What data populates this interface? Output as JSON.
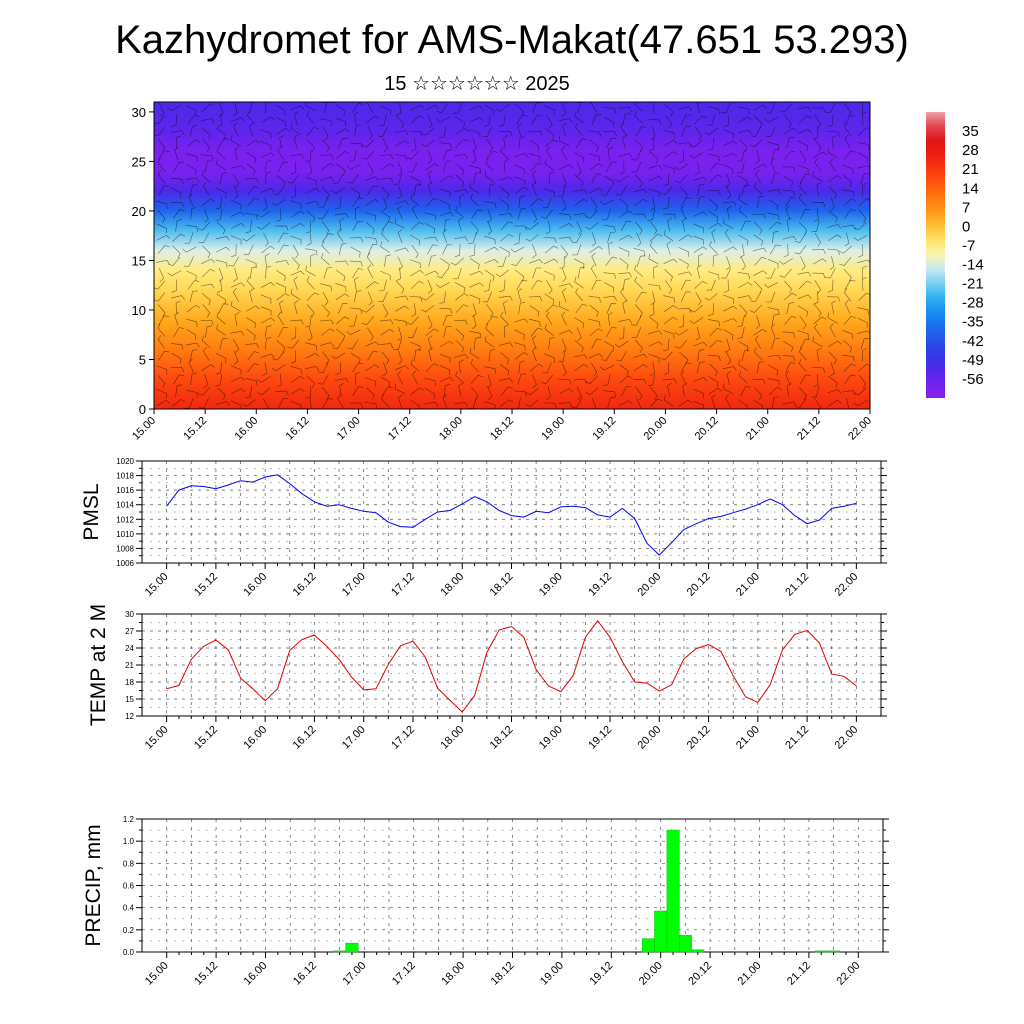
{
  "header": {
    "title": "Kazhydromet for AMS-Makat(47.651 53.293)",
    "subtitle": "15 ☆☆☆☆☆☆ 2025"
  },
  "x_labels": [
    "15.00",
    "15.12",
    "16.00",
    "16.12",
    "17.00",
    "17.12",
    "18.00",
    "18.12",
    "19.00",
    "19.12",
    "20.00",
    "20.12",
    "21.00",
    "21.12",
    "22.00"
  ],
  "colors": {
    "pmsl_line": "#0000ff",
    "temp_line": "#e00000",
    "precip_bar": "#00ff00",
    "wind_barbs": "#000000"
  },
  "chart_data": [
    {
      "id": "upper_air",
      "type": "heatmap",
      "y_ticks": [
        0,
        5,
        10,
        15,
        20,
        25,
        30
      ],
      "ylim": [
        0,
        31
      ],
      "colorbar": {
        "labels": [
          "35",
          "28",
          "21",
          "14",
          "7",
          "0",
          "-7",
          "-14",
          "-21",
          "-28",
          "-35",
          "-42",
          "-49",
          "-56"
        ],
        "range": [
          -63,
          42
        ]
      },
      "temperature_profile": [
        {
          "level": 0,
          "value": 24
        },
        {
          "level": 3,
          "value": 18
        },
        {
          "level": 6,
          "value": 10
        },
        {
          "level": 9,
          "value": 3
        },
        {
          "level": 12,
          "value": -3
        },
        {
          "level": 14,
          "value": -7
        },
        {
          "level": 16,
          "value": -14
        },
        {
          "level": 18,
          "value": -24
        },
        {
          "level": 20,
          "value": -38
        },
        {
          "level": 22,
          "value": -52
        },
        {
          "level": 24,
          "value": -60
        },
        {
          "level": 26,
          "value": -60
        },
        {
          "level": 28,
          "value": -55
        },
        {
          "level": 31,
          "value": -52
        }
      ]
    },
    {
      "id": "pmsl",
      "type": "line",
      "ylabel": "PMSL",
      "ylim": [
        1006,
        1020
      ],
      "y_ticks": [
        1006,
        1008,
        1010,
        1012,
        1014,
        1016,
        1018,
        1020
      ],
      "x_hours": [
        0,
        3,
        6,
        9,
        12,
        15,
        18,
        21,
        24,
        27,
        30,
        33,
        36,
        39,
        42,
        45,
        48,
        51,
        54,
        57,
        60,
        63,
        66,
        69,
        72,
        75,
        78,
        81,
        84,
        87,
        90,
        93,
        96,
        99,
        102,
        105,
        108,
        111,
        114,
        117,
        120,
        123,
        126,
        129,
        132,
        135,
        138,
        141,
        144,
        147,
        150,
        153,
        156,
        159,
        162,
        165,
        168
      ],
      "series": [
        {
          "values": [
            1013.8,
            1016.0,
            1016.6,
            1016.5,
            1016.2,
            1016.7,
            1017.3,
            1017.1,
            1017.8,
            1018.1,
            1016.9,
            1015.5,
            1014.4,
            1013.8,
            1014.0,
            1013.5,
            1013.1,
            1012.9,
            1011.6,
            1011.0,
            1010.9,
            1012.0,
            1013.0,
            1013.2,
            1014.1,
            1015.1,
            1014.4,
            1013.2,
            1012.5,
            1012.3,
            1013.1,
            1012.9,
            1013.7,
            1013.8,
            1013.6,
            1012.6,
            1012.3,
            1013.5,
            1012.1,
            1008.7,
            1007.1,
            1008.8,
            1010.6,
            1011.4,
            1012.1,
            1012.4,
            1012.9,
            1013.4,
            1014.0,
            1014.8,
            1014.0,
            1012.5,
            1011.4,
            1011.9,
            1013.5,
            1013.8,
            1014.2
          ]
        }
      ]
    },
    {
      "id": "temp",
      "type": "line",
      "ylabel": "TEMP at 2 M",
      "ylim": [
        12,
        30
      ],
      "y_ticks": [
        12,
        15,
        18,
        21,
        24,
        27,
        30
      ],
      "x_hours": [
        0,
        3,
        6,
        9,
        12,
        15,
        18,
        21,
        24,
        27,
        30,
        33,
        36,
        39,
        42,
        45,
        48,
        51,
        54,
        57,
        60,
        63,
        66,
        69,
        72,
        75,
        78,
        81,
        84,
        87,
        90,
        93,
        96,
        99,
        102,
        105,
        108,
        111,
        114,
        117,
        120,
        123,
        126,
        129,
        132,
        135,
        138,
        141,
        144,
        147,
        150,
        153,
        156,
        159,
        162,
        165,
        168
      ],
      "series": [
        {
          "values": [
            16.8,
            17.4,
            22.0,
            24.3,
            25.4,
            23.7,
            18.7,
            16.8,
            14.7,
            16.8,
            23.6,
            25.5,
            26.3,
            24.3,
            22.0,
            18.9,
            16.6,
            16.8,
            21.1,
            24.4,
            25.2,
            22.4,
            16.9,
            14.8,
            12.7,
            15.6,
            23.2,
            27.2,
            27.8,
            25.9,
            20.2,
            17.3,
            16.3,
            19.1,
            25.9,
            28.8,
            25.9,
            21.6,
            18.0,
            17.8,
            16.4,
            17.5,
            22.1,
            23.9,
            24.6,
            23.4,
            19.1,
            15.4,
            14.4,
            17.5,
            23.7,
            26.4,
            27.1,
            24.9,
            19.4,
            19.0,
            17.3
          ]
        }
      ]
    },
    {
      "id": "precip",
      "type": "bar",
      "ylabel": "PRECIP, mm",
      "ylim": [
        0,
        1.2
      ],
      "y_ticks": [
        0.0,
        0.2,
        0.4,
        0.6,
        0.8,
        1.0,
        1.2
      ],
      "bar_width_hours": 3,
      "bars": [
        {
          "hour": 42,
          "value": 0.01
        },
        {
          "hour": 45,
          "value": 0.08
        },
        {
          "hour": 117,
          "value": 0.12
        },
        {
          "hour": 120,
          "value": 0.37
        },
        {
          "hour": 123,
          "value": 1.1
        },
        {
          "hour": 126,
          "value": 0.15
        },
        {
          "hour": 129,
          "value": 0.02
        },
        {
          "hour": 159,
          "value": 0.01
        },
        {
          "hour": 162,
          "value": 0.01
        }
      ]
    }
  ]
}
